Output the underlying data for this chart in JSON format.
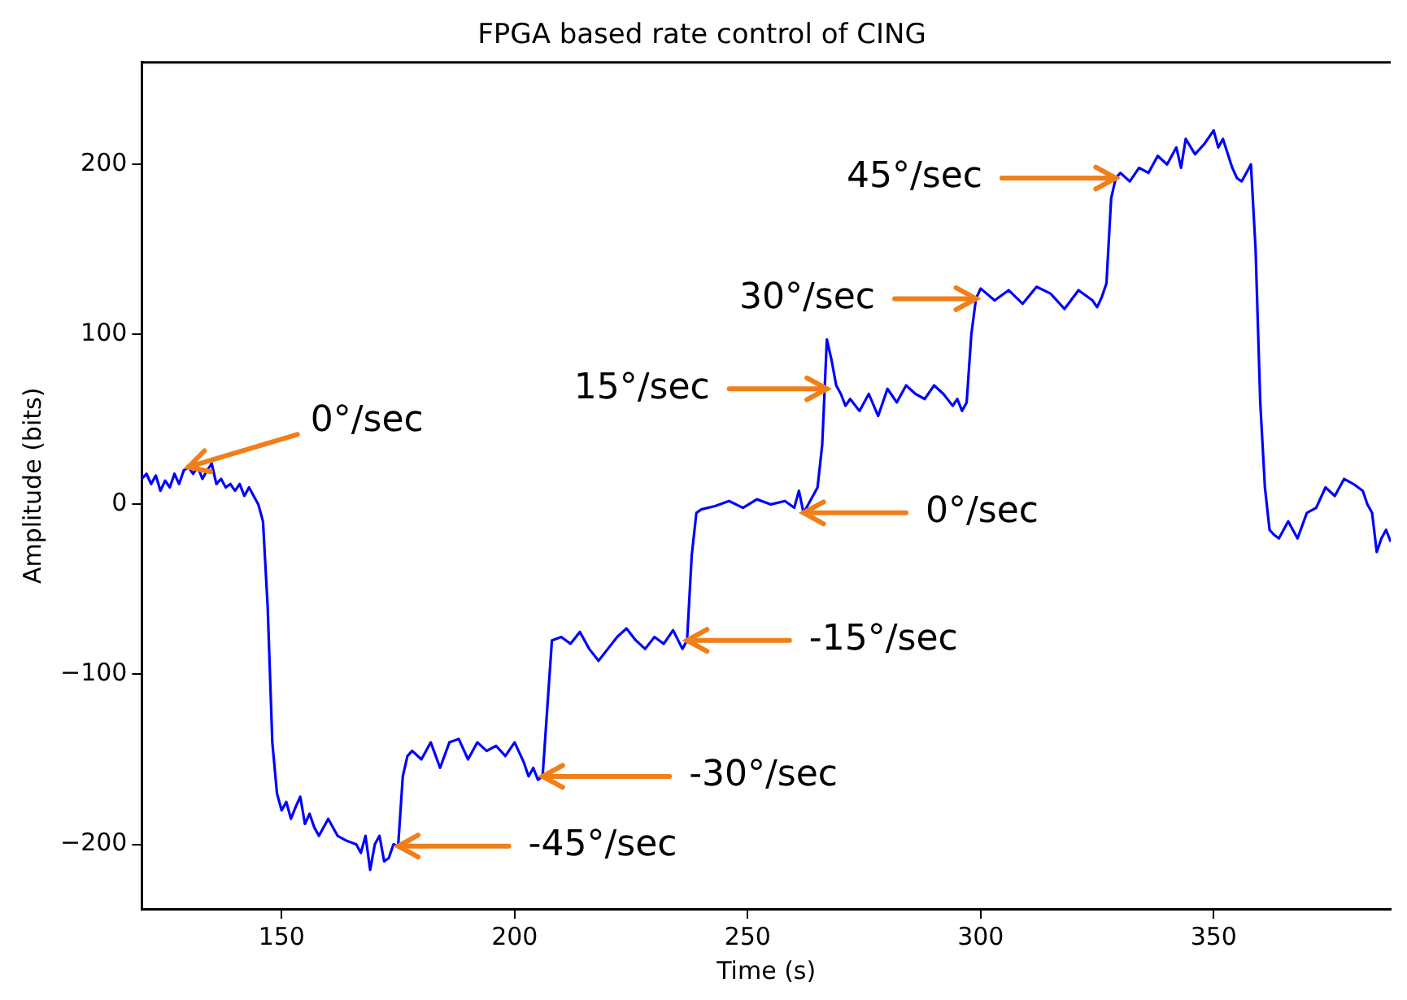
{
  "chart_data": {
    "type": "line",
    "title": "FPGA based rate control of CING",
    "xlabel": "Time (s)",
    "ylabel": "Amplitude (bits)",
    "x": [
      120,
      121,
      122,
      123,
      124,
      125,
      126,
      127,
      128,
      129,
      130,
      131,
      132,
      133,
      134,
      135,
      136,
      137,
      138,
      139,
      140,
      141,
      142,
      143,
      144,
      145,
      146,
      147,
      148,
      149,
      150,
      151,
      152,
      153,
      154,
      155,
      156,
      157,
      158,
      160,
      162,
      164,
      166,
      167,
      168,
      169,
      170,
      171,
      172,
      173,
      174,
      175,
      176,
      177,
      178,
      180,
      182,
      184,
      186,
      188,
      190,
      192,
      194,
      196,
      198,
      200,
      202,
      203,
      204,
      205,
      206,
      207,
      208,
      210,
      212,
      214,
      216,
      218,
      220,
      222,
      224,
      226,
      228,
      230,
      232,
      234,
      236,
      237,
      238,
      239,
      240,
      243,
      246,
      249,
      252,
      255,
      258,
      260,
      261,
      262,
      263,
      264,
      265,
      266,
      267,
      268,
      269,
      270,
      271,
      272,
      274,
      276,
      278,
      280,
      282,
      284,
      286,
      288,
      290,
      292,
      294,
      295,
      296,
      297,
      298,
      299,
      300,
      303,
      306,
      309,
      312,
      315,
      318,
      321,
      324,
      325,
      326,
      327,
      328,
      329,
      330,
      332,
      334,
      336,
      338,
      340,
      342,
      343,
      344,
      346,
      348,
      350,
      351,
      352,
      354,
      355,
      356,
      357,
      358,
      359,
      360,
      361,
      362,
      363,
      364,
      365,
      366,
      368,
      370,
      372,
      374,
      376,
      378,
      380,
      382,
      383,
      384,
      385,
      386,
      387,
      388
    ],
    "series": [
      {
        "color": "#0000ff",
        "values": [
          15,
          18,
          12,
          17,
          8,
          14,
          10,
          18,
          12,
          20,
          22,
          18,
          22,
          15,
          20,
          24,
          12,
          15,
          10,
          12,
          8,
          12,
          5,
          10,
          5,
          0,
          -10,
          -60,
          -140,
          -170,
          -180,
          -175,
          -185,
          -178,
          -172,
          -188,
          -182,
          -190,
          -195,
          -185,
          -195,
          -198,
          -200,
          -205,
          -195,
          -215,
          -200,
          -195,
          -210,
          -208,
          -200,
          -201,
          -160,
          -148,
          -145,
          -150,
          -140,
          -155,
          -140,
          -138,
          -150,
          -140,
          -145,
          -142,
          -148,
          -140,
          -152,
          -160,
          -155,
          -162,
          -160,
          -120,
          -80,
          -78,
          -82,
          -75,
          -85,
          -92,
          -85,
          -78,
          -73,
          -80,
          -85,
          -78,
          -82,
          -74,
          -85,
          -80,
          -30,
          -5,
          -3,
          -1,
          2,
          -2,
          3,
          0,
          2,
          -2,
          8,
          -5,
          0,
          5,
          10,
          35,
          97,
          85,
          70,
          65,
          58,
          62,
          55,
          65,
          52,
          68,
          60,
          70,
          65,
          62,
          70,
          65,
          58,
          62,
          55,
          60,
          100,
          121,
          127,
          120,
          126,
          118,
          128,
          124,
          115,
          126,
          120,
          116,
          122,
          130,
          180,
          192,
          195,
          190,
          198,
          195,
          205,
          200,
          210,
          198,
          215,
          206,
          212,
          220,
          210,
          215,
          198,
          192,
          190,
          195,
          200,
          150,
          60,
          10,
          -15,
          -18,
          -20,
          -15,
          -10,
          -20,
          -5,
          -2,
          10,
          5,
          15,
          12,
          8,
          0,
          -5,
          -28,
          -20,
          -15,
          -22
        ]
      }
    ],
    "xlim": [
      120,
      388
    ],
    "xticks": [
      150,
      200,
      250,
      300,
      350
    ],
    "ylim": [
      -238,
      260
    ],
    "yticks": [
      -200,
      -100,
      0,
      100,
      200
    ],
    "grid": false,
    "legend": false,
    "marker": "none",
    "line_style": "solid",
    "annotations": [
      {
        "text": "0°/sec",
        "x": 130,
        "y": 22
      },
      {
        "text": "15°/sec",
        "x": 267,
        "y": 68
      },
      {
        "text": "30°/sec",
        "x": 299,
        "y": 121
      },
      {
        "text": "45°/sec",
        "x": 329,
        "y": 192
      },
      {
        "text": "0°/sec",
        "x": 262,
        "y": -5
      },
      {
        "text": "-15°/sec",
        "x": 237,
        "y": -80
      },
      {
        "text": "-30°/sec",
        "x": 206,
        "y": -160
      },
      {
        "text": "-45°/sec",
        "x": 175,
        "y": -201
      }
    ]
  }
}
